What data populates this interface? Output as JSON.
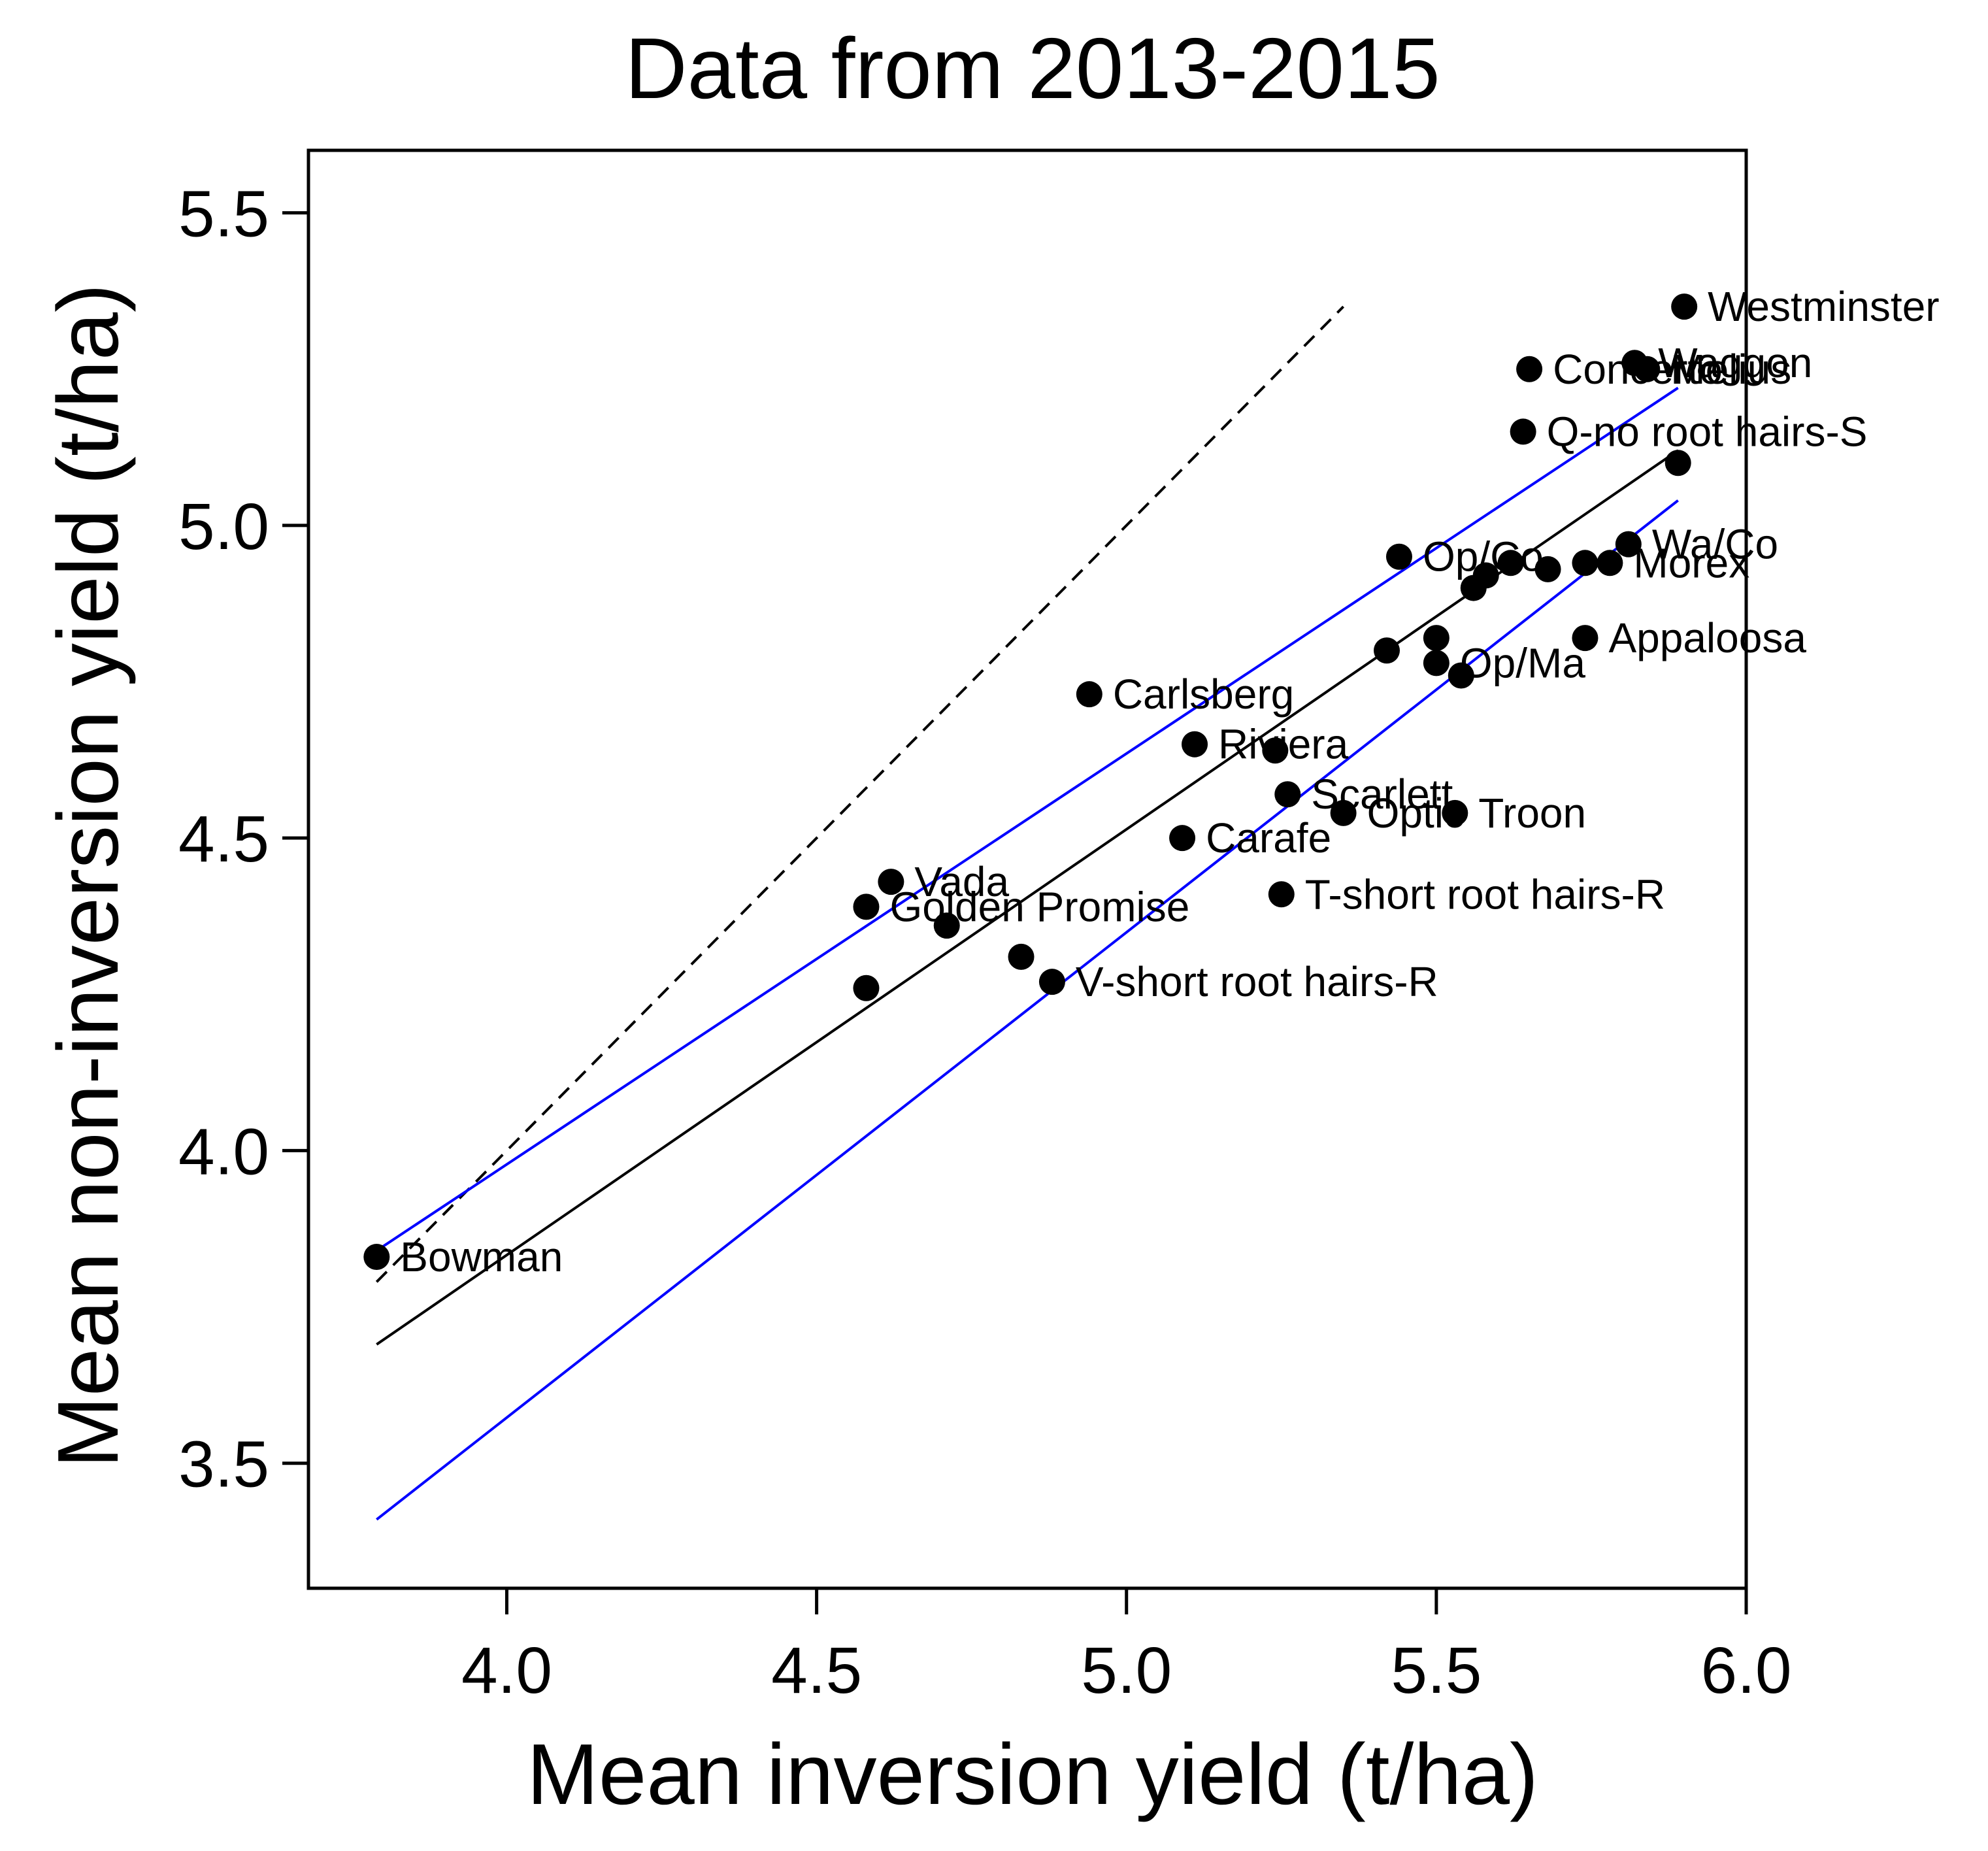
{
  "chart_data": {
    "type": "scatter",
    "title": "Data from 2013-2015",
    "xlabel": "Mean inversion yield (t/ha)",
    "ylabel": "Mean non-inversion yield (t/ha)",
    "xlim": [
      3.68,
      6.0
    ],
    "ylim": [
      3.3,
      5.6
    ],
    "xticks": [
      4.0,
      4.5,
      5.0,
      5.5,
      6.0
    ],
    "xtick_labels": [
      "4.0",
      "4.5",
      "5.0",
      "5.5",
      "6.0"
    ],
    "yticks": [
      3.5,
      4.0,
      4.5,
      5.0,
      5.5
    ],
    "ytick_labels": [
      "3.5",
      "4.0",
      "4.5",
      "5.0",
      "5.5"
    ],
    "grid": false,
    "points": [
      {
        "x": 3.79,
        "y": 3.83,
        "label": "Bowman"
      },
      {
        "x": 4.58,
        "y": 4.26,
        "label": ""
      },
      {
        "x": 4.58,
        "y": 4.39,
        "label": "Golden Promise"
      },
      {
        "x": 4.62,
        "y": 4.43,
        "label": "Vada"
      },
      {
        "x": 4.71,
        "y": 4.36,
        "label": ""
      },
      {
        "x": 4.83,
        "y": 4.31,
        "label": ""
      },
      {
        "x": 4.88,
        "y": 4.27,
        "label": "V-short root hairs-R"
      },
      {
        "x": 4.94,
        "y": 4.73,
        "label": "Carlsberg"
      },
      {
        "x": 5.09,
        "y": 4.5,
        "label": "Carafe"
      },
      {
        "x": 5.11,
        "y": 4.65,
        "label": "Riviera"
      },
      {
        "x": 5.24,
        "y": 4.64,
        "label": ""
      },
      {
        "x": 5.25,
        "y": 4.41,
        "label": "T-short root hairs-R"
      },
      {
        "x": 5.26,
        "y": 4.57,
        "label": "Scarlett"
      },
      {
        "x": 5.35,
        "y": 4.54,
        "label": "Optic"
      },
      {
        "x": 5.42,
        "y": 4.8,
        "label": ""
      },
      {
        "x": 5.44,
        "y": 4.95,
        "label": "Op/Co"
      },
      {
        "x": 5.5,
        "y": 4.82,
        "label": ""
      },
      {
        "x": 5.5,
        "y": 4.78,
        "label": "Op/Ma"
      },
      {
        "x": 5.53,
        "y": 4.54,
        "label": "Troon"
      },
      {
        "x": 5.54,
        "y": 4.76,
        "label": ""
      },
      {
        "x": 5.56,
        "y": 4.9,
        "label": ""
      },
      {
        "x": 5.58,
        "y": 4.92,
        "label": ""
      },
      {
        "x": 5.62,
        "y": 4.94,
        "label": ""
      },
      {
        "x": 5.64,
        "y": 5.15,
        "label": "Q-no root hairs-S"
      },
      {
        "x": 5.65,
        "y": 5.25,
        "label": "Concerto"
      },
      {
        "x": 5.68,
        "y": 4.93,
        "label": ""
      },
      {
        "x": 5.74,
        "y": 4.82,
        "label": "Appaloosa"
      },
      {
        "x": 5.74,
        "y": 4.94,
        "label": ""
      },
      {
        "x": 5.78,
        "y": 4.94,
        "label": "Morex"
      },
      {
        "x": 5.81,
        "y": 4.97,
        "label": "Wa/Co"
      },
      {
        "x": 5.82,
        "y": 5.26,
        "label": "Waggon"
      },
      {
        "x": 5.84,
        "y": 5.25,
        "label": "Melius"
      },
      {
        "x": 5.89,
        "y": 5.1,
        "label": ""
      },
      {
        "x": 5.9,
        "y": 5.35,
        "label": "Westminster"
      }
    ],
    "lines": [
      {
        "name": "1:1 line",
        "color": "#000000",
        "dashed": true,
        "x": [
          3.79,
          5.35
        ],
        "y": [
          3.79,
          5.35
        ]
      },
      {
        "name": "fit",
        "color": "#000000",
        "dashed": false,
        "x": [
          3.79,
          5.89
        ],
        "y": [
          3.69,
          5.12
        ]
      },
      {
        "name": "upper-ci",
        "color": "#0000ff",
        "dashed": false,
        "x": [
          3.79,
          5.89
        ],
        "y": [
          3.84,
          5.22
        ]
      },
      {
        "name": "lower-ci",
        "color": "#0000ff",
        "dashed": false,
        "x": [
          3.79,
          5.89
        ],
        "y": [
          3.41,
          5.04
        ]
      }
    ]
  }
}
